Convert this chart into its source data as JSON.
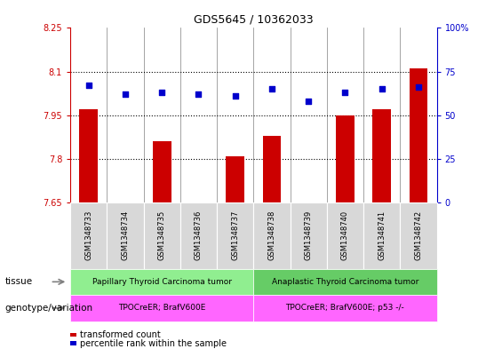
{
  "title": "GDS5645 / 10362033",
  "samples": [
    "GSM1348733",
    "GSM1348734",
    "GSM1348735",
    "GSM1348736",
    "GSM1348737",
    "GSM1348738",
    "GSM1348739",
    "GSM1348740",
    "GSM1348741",
    "GSM1348742"
  ],
  "transformed_count": [
    7.97,
    7.65,
    7.86,
    7.65,
    7.81,
    7.88,
    7.65,
    7.95,
    7.97,
    8.11
  ],
  "percentile_rank": [
    67,
    62,
    63,
    62,
    61,
    65,
    58,
    63,
    65,
    66
  ],
  "ylim_left": [
    7.65,
    8.25
  ],
  "ylim_right": [
    0,
    100
  ],
  "yticks_left": [
    7.65,
    7.8,
    7.95,
    8.1,
    8.25
  ],
  "yticks_right": [
    0,
    25,
    50,
    75,
    100
  ],
  "ytick_labels_left": [
    "7.65",
    "7.8",
    "7.95",
    "8.1",
    "8.25"
  ],
  "ytick_labels_right": [
    "0",
    "25",
    "50",
    "75",
    "100%"
  ],
  "bar_color": "#cc0000",
  "dot_color": "#0000cc",
  "tissue_group1_label": "Papillary Thyroid Carcinoma tumor",
  "tissue_group2_label": "Anaplastic Thyroid Carcinoma tumor",
  "tissue_group1_color": "#90EE90",
  "tissue_group2_color": "#66CC66",
  "genotype_group1_label": "TPOCreER; BrafV600E",
  "genotype_group2_label": "TPOCreER; BrafV600E; p53 -/-",
  "genotype_color": "#FF66FF",
  "group1_count": 5,
  "group2_count": 5,
  "tissue_label": "tissue",
  "genotype_label": "genotype/variation",
  "legend_bar_label": "transformed count",
  "legend_dot_label": "percentile rank within the sample",
  "sample_bg_color": "#d8d8d8",
  "bg_color_plot": "#ffffff"
}
